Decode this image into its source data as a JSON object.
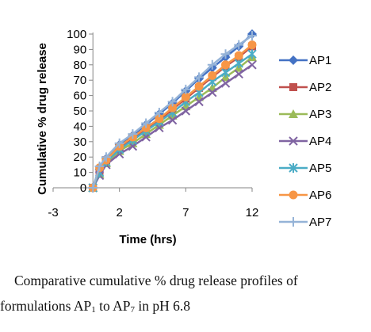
{
  "chart_data": {
    "type": "line",
    "xlabel": "Time (hrs)",
    "ylabel": "Cumulative % drug release",
    "xlim": [
      -3,
      12
    ],
    "ylim": [
      0,
      100
    ],
    "x_ticks": [
      "-3",
      "2",
      "7",
      "12"
    ],
    "y_ticks": [
      "0",
      "10",
      "20",
      "30",
      "40",
      "50",
      "60",
      "70",
      "80",
      "90",
      "100"
    ],
    "grid": false,
    "legend_position": "right",
    "x": [
      0,
      0.5,
      1,
      2,
      3,
      4,
      5,
      6,
      7,
      8,
      9,
      10,
      11,
      12
    ],
    "series": [
      {
        "name": "AP1",
        "color": "#4472C4",
        "marker": "diamond",
        "values": [
          0,
          12,
          19,
          28,
          34,
          41,
          48,
          55,
          63,
          71,
          78,
          85,
          92,
          100
        ]
      },
      {
        "name": "AP2",
        "color": "#C0504D",
        "marker": "square",
        "values": [
          0,
          11,
          18,
          26,
          32,
          38,
          44,
          51,
          58,
          65,
          72,
          79,
          85,
          92
        ]
      },
      {
        "name": "AP3",
        "color": "#9BBB59",
        "marker": "triangle",
        "values": [
          0,
          9,
          16,
          24,
          29,
          35,
          41,
          47,
          53,
          59,
          65,
          72,
          78,
          85
        ]
      },
      {
        "name": "AP4",
        "color": "#8064A2",
        "marker": "x",
        "values": [
          0,
          8,
          15,
          22,
          27,
          33,
          39,
          44,
          50,
          56,
          62,
          68,
          74,
          80
        ]
      },
      {
        "name": "AP5",
        "color": "#4BACC6",
        "marker": "star",
        "values": [
          0,
          10,
          17,
          25,
          31,
          37,
          43,
          49,
          56,
          62,
          69,
          75,
          81,
          87
        ]
      },
      {
        "name": "AP6",
        "color": "#F79646",
        "marker": "circle",
        "values": [
          0,
          13,
          18,
          27,
          33,
          39,
          45,
          52,
          59,
          66,
          73,
          80,
          86,
          93
        ]
      },
      {
        "name": "AP7",
        "color": "#95B3D7",
        "marker": "plus",
        "values": [
          0,
          14,
          20,
          29,
          35,
          42,
          49,
          56,
          64,
          72,
          80,
          87,
          93,
          99
        ]
      }
    ]
  },
  "caption": {
    "line1_text": "Comparative cumulative % drug release profiles of",
    "line2_prefix": "formulations AP",
    "line2_sub1": "1",
    "line2_to": " to AP",
    "line2_sub2": "7",
    "line2_suffix": " in pH 6.8"
  }
}
